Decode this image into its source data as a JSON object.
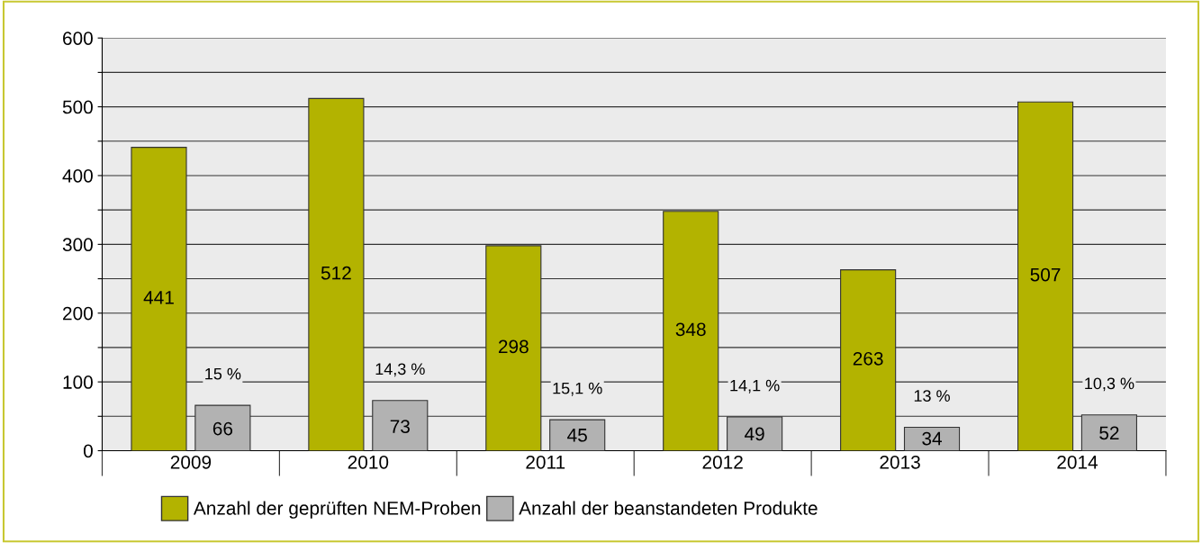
{
  "chart_data": {
    "type": "bar",
    "categories": [
      "2009",
      "2010",
      "2011",
      "2012",
      "2013",
      "2014"
    ],
    "series": [
      {
        "name": "Anzahl der geprüften NEM-Proben",
        "color": "#b3b300",
        "values": [
          441,
          512,
          298,
          348,
          263,
          507
        ]
      },
      {
        "name": "Anzahl der beanstandeten Produkte",
        "color": "#b2b2b2",
        "values": [
          66,
          73,
          45,
          49,
          34,
          52
        ]
      }
    ],
    "ylim": [
      0,
      600
    ],
    "yticks": [
      0,
      {
        "value": 50,
        "label": null
      },
      100,
      {
        "value": 150,
        "label": null
      },
      200,
      {
        "value": 250,
        "label": null
      },
      300,
      {
        "value": 350,
        "label": null
      },
      400,
      {
        "value": 450,
        "label": null
      },
      500,
      {
        "value": 550,
        "label": null
      },
      600
    ],
    "grid": "y",
    "legend": "bottom",
    "data_labels": true,
    "annotations": [
      {
        "text": "15 %",
        "x": "2009",
        "y": 66
      },
      {
        "text": "14,3 %",
        "x": "2010",
        "y": 73
      },
      {
        "text": "15,1 %",
        "x": "2011",
        "y": 45
      },
      {
        "text": "14,1 %",
        "x": "2012",
        "y": 49
      },
      {
        "text": "13 %",
        "x": "2013",
        "y": 34
      },
      {
        "text": "10,3 %",
        "x": "2014",
        "y": 52
      }
    ]
  }
}
